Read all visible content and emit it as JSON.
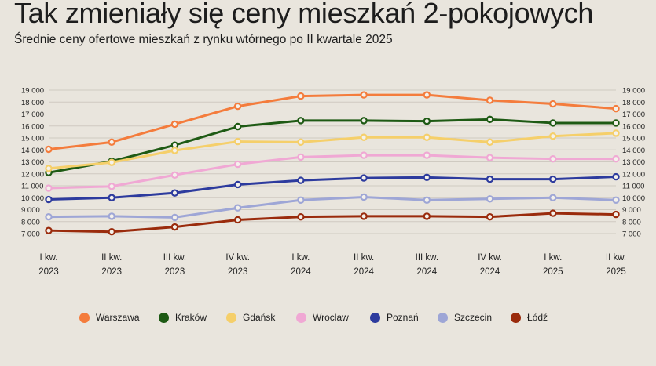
{
  "title": "Tak zmieniały się ceny mieszkań 2-pokojowych",
  "subtitle": "Średnie ceny ofertowe mieszkań z rynku wtórnego po II kwartale 2025",
  "chart_data": {
    "type": "line",
    "x_ticks": [
      [
        "I kw.",
        "2023"
      ],
      [
        "II kw.",
        "2023"
      ],
      [
        "III kw.",
        "2023"
      ],
      [
        "IV kw.",
        "2023"
      ],
      [
        "I kw.",
        "2024"
      ],
      [
        "II kw.",
        "2024"
      ],
      [
        "III kw.",
        "2024"
      ],
      [
        "IV kw.",
        "2024"
      ],
      [
        "I kw.",
        "2025"
      ],
      [
        "II kw.",
        "2025"
      ]
    ],
    "y_ticks": [
      "19 000",
      "18 000",
      "17 000",
      "16 000",
      "15 000",
      "14 000",
      "13 000",
      "12 000",
      "11 000",
      "10 000",
      "9 000",
      "8 000",
      "7 000"
    ],
    "ylim": [
      7000,
      19000
    ],
    "grid": true,
    "legend_position": "bottom",
    "series": [
      {
        "name": "Warszawa",
        "color": "#f47c3c",
        "values": [
          14050,
          14650,
          16150,
          17650,
          18500,
          18600,
          18600,
          18150,
          17850,
          17450
        ]
      },
      {
        "name": "Kraków",
        "color": "#1e5a14",
        "values": [
          12100,
          13050,
          14400,
          15950,
          16450,
          16450,
          16400,
          16550,
          16250,
          16250
        ]
      },
      {
        "name": "Gdańsk",
        "color": "#f5cf6a",
        "values": [
          12450,
          12950,
          13950,
          14700,
          14650,
          15050,
          15050,
          14650,
          15150,
          15400
        ]
      },
      {
        "name": "Wrocław",
        "color": "#f0a8d4",
        "values": [
          10800,
          10950,
          11900,
          12800,
          13400,
          13550,
          13550,
          13350,
          13250,
          13250
        ]
      },
      {
        "name": "Poznań",
        "color": "#2d3b9e",
        "values": [
          9850,
          10000,
          10400,
          11100,
          11450,
          11650,
          11700,
          11550,
          11550,
          11750
        ]
      },
      {
        "name": "Szczecin",
        "color": "#9ea6d6",
        "values": [
          8400,
          8450,
          8350,
          9150,
          9800,
          10050,
          9800,
          9900,
          10000,
          9800
        ]
      },
      {
        "name": "Łódź",
        "color": "#9a2b0c",
        "values": [
          7250,
          7150,
          7550,
          8150,
          8400,
          8450,
          8450,
          8400,
          8700,
          8600
        ]
      }
    ]
  }
}
